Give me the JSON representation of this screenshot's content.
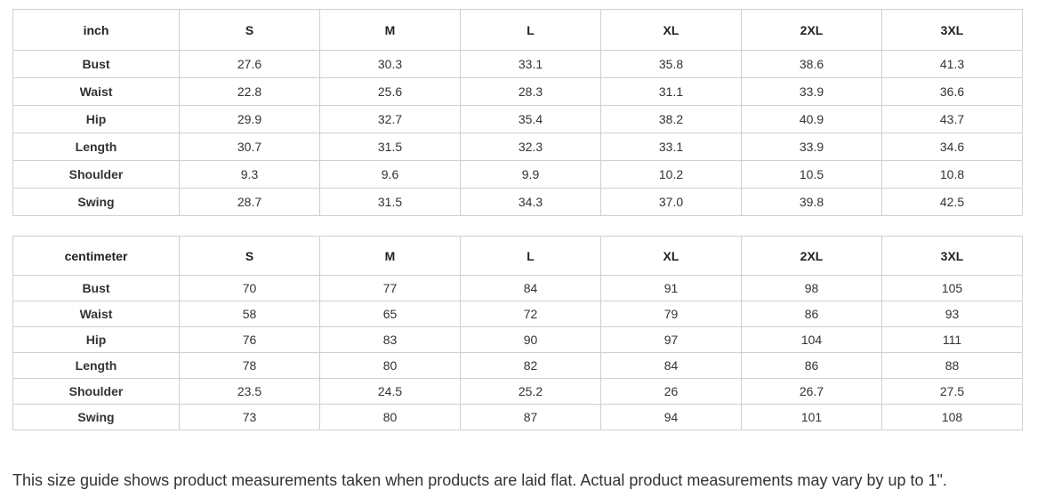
{
  "tables": [
    {
      "unit": "inch",
      "sizes": [
        "S",
        "M",
        "L",
        "XL",
        "2XL",
        "3XL"
      ],
      "rows": [
        {
          "label": "Bust",
          "values": [
            "27.6",
            "30.3",
            "33.1",
            "35.8",
            "38.6",
            "41.3"
          ]
        },
        {
          "label": "Waist",
          "values": [
            "22.8",
            "25.6",
            "28.3",
            "31.1",
            "33.9",
            "36.6"
          ]
        },
        {
          "label": "Hip",
          "values": [
            "29.9",
            "32.7",
            "35.4",
            "38.2",
            "40.9",
            "43.7"
          ]
        },
        {
          "label": "Length",
          "values": [
            "30.7",
            "31.5",
            "32.3",
            "33.1",
            "33.9",
            "34.6"
          ]
        },
        {
          "label": "Shoulder",
          "values": [
            "9.3",
            "9.6",
            "9.9",
            "10.2",
            "10.5",
            "10.8"
          ]
        },
        {
          "label": "Swing",
          "values": [
            "28.7",
            "31.5",
            "34.3",
            "37.0",
            "39.8",
            "42.5"
          ]
        }
      ]
    },
    {
      "unit": "centimeter",
      "sizes": [
        "S",
        "M",
        "L",
        "XL",
        "2XL",
        "3XL"
      ],
      "rows": [
        {
          "label": "Bust",
          "values": [
            "70",
            "77",
            "84",
            "91",
            "98",
            "105"
          ]
        },
        {
          "label": "Waist",
          "values": [
            "58",
            "65",
            "72",
            "79",
            "86",
            "93"
          ]
        },
        {
          "label": "Hip",
          "values": [
            "76",
            "83",
            "90",
            "97",
            "104",
            "111"
          ]
        },
        {
          "label": "Length",
          "values": [
            "78",
            "80",
            "82",
            "84",
            "86",
            "88"
          ]
        },
        {
          "label": "Shoulder",
          "values": [
            "23.5",
            "24.5",
            "25.2",
            "26",
            "26.7",
            "27.5"
          ]
        },
        {
          "label": "Swing",
          "values": [
            "73",
            "80",
            "87",
            "94",
            "101",
            "108"
          ]
        }
      ]
    }
  ],
  "note": "This size guide shows product measurements taken when products are laid flat. Actual product measurements may vary by up to 1\"."
}
